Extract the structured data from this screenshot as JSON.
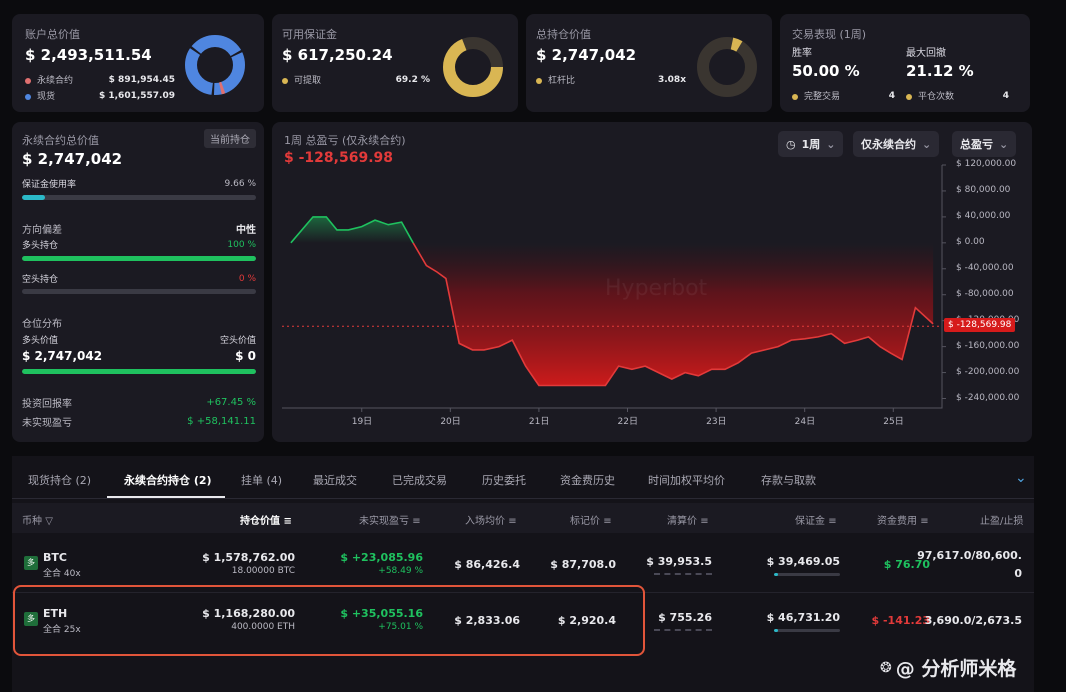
{
  "summary": {
    "total_value": {
      "label": "账户总价值",
      "value": "$ 2,493,511.54",
      "legend": [
        {
          "label": "永续合约",
          "value": "$ 891,954.45",
          "color": "#e07070"
        },
        {
          "label": "现货",
          "value": "$ 1,601,557.09",
          "color": "#4f86e0"
        }
      ]
    },
    "available_margin": {
      "label": "可用保证金",
      "value": "$ 617,250.24",
      "legend": [
        {
          "label": "可提取",
          "value": "69.2 %",
          "color": "#d9b653"
        }
      ]
    },
    "total_position": {
      "label": "总持仓价值",
      "value": "$ 2,747,042",
      "legend": [
        {
          "label": "杠杆比",
          "value": "3.08x",
          "color": "#d9b653"
        }
      ]
    },
    "performance": {
      "label": "交易表现 (1周)",
      "win_rate_label": "胜率",
      "win_rate": "50.00 %",
      "max_dd_label": "最大回撤",
      "max_dd": "21.12 %",
      "completed_label": "完整交易",
      "completed": "4",
      "close_label": "平仓次数",
      "close": "4"
    }
  },
  "perp_panel": {
    "title": "永续合约总价值",
    "badge": "当前持仓",
    "value": "$ 2,747,042",
    "margin_usage_label": "保证金使用率",
    "margin_usage": "9.66 %",
    "margin_usage_pct": 9.66,
    "bias_label": "方向偏差",
    "bias_value": "中性",
    "long_label": "多头持仓",
    "long_pct_text": "100 %",
    "long_pct": 100,
    "short_label": "空头持仓",
    "short_pct_text": "0 %",
    "short_pct": 0,
    "dist_label": "仓位分布",
    "long_value_label": "多头价值",
    "short_value_label": "空头价值",
    "long_value": "$ 2,747,042",
    "short_value": "$ 0",
    "roi_label": "投资回报率",
    "roi": "+67.45 %",
    "upnl_label": "未实现盈亏",
    "upnl": "$ +58,141.11"
  },
  "chart_panel": {
    "title": "1周 总盈亏 (仅永续合约)",
    "value": "$ -128,569.98",
    "btn_period": "1周",
    "btn_scope": "仅永续合约",
    "btn_metric": "总盈亏",
    "watermark": "Hyperbot"
  },
  "chart_data": {
    "type": "area",
    "ylim": [
      -250000,
      120000
    ],
    "yticks": [
      "$ 120,000.00",
      "$ 80,000.00",
      "$ 40,000.00",
      "$ 0.00",
      "$ -40,000.00",
      "$ -80,000.00",
      "$ -120,000.00",
      "$ -160,000.00",
      "$ -200,000.00",
      "$ -240,000.00"
    ],
    "ytick_values": [
      120000,
      80000,
      40000,
      0,
      -40000,
      -80000,
      -120000,
      -160000,
      -200000,
      -240000
    ],
    "xticks": [
      "19日",
      "20日",
      "21日",
      "22日",
      "23日",
      "24日",
      "25日"
    ],
    "xtick_values": [
      19,
      20,
      21,
      22,
      23,
      24,
      25
    ],
    "current_label": "$ -128,569.98",
    "current_value": -128569.98,
    "x": [
      18.2,
      18.45,
      18.6,
      18.72,
      18.85,
      19.0,
      19.15,
      19.3,
      19.45,
      19.58,
      19.73,
      19.85,
      19.95,
      20.1,
      20.25,
      20.38,
      20.55,
      20.7,
      20.85,
      21.0,
      21.2,
      21.4,
      21.6,
      21.75,
      21.9,
      22.05,
      22.2,
      22.35,
      22.5,
      22.65,
      22.8,
      22.95,
      23.1,
      23.25,
      23.4,
      23.55,
      23.7,
      23.85,
      24.0,
      24.15,
      24.3,
      24.45,
      24.6,
      24.72,
      24.85,
      24.97,
      25.1,
      25.25,
      25.45
    ],
    "y": [
      0,
      40000,
      40000,
      20000,
      20000,
      25000,
      35000,
      28000,
      32000,
      0,
      -35000,
      -45000,
      -55000,
      -155000,
      -165000,
      -165000,
      -160000,
      -150000,
      -190000,
      -220000,
      -220000,
      -220000,
      -220000,
      -220000,
      -190000,
      -195000,
      -190000,
      -200000,
      -210000,
      -200000,
      -205000,
      -195000,
      -195000,
      -185000,
      -170000,
      -165000,
      -160000,
      -150000,
      -148000,
      -145000,
      -140000,
      -155000,
      -150000,
      -145000,
      -160000,
      -170000,
      -180000,
      -100000,
      -125000
    ]
  },
  "tabs": [
    "现货持仓 (2)",
    "永续合约持仓 (2)",
    "挂单 (4)",
    "最近成交",
    "已完成交易",
    "历史委托",
    "资金费历史",
    "时间加权平均价",
    "存款与取款"
  ],
  "table": {
    "headers": [
      "币种",
      "持仓价值",
      "未实现盈亏",
      "入场均价",
      "标记价",
      "清算价",
      "保证金",
      "资金费用",
      "止盈/止损"
    ],
    "rows": [
      {
        "side": "多",
        "coin": "BTC",
        "mode": "全合 40x",
        "value": "$ 1,578,762.00",
        "size": "18.00000 BTC",
        "upnl": "$ +23,085.96",
        "upnl_pct": "+58.49 %",
        "entry": "$ 86,426.4",
        "mark": "$ 87,708.0",
        "liq": "$ 39,953.5",
        "margin": "$ 39,469.05",
        "funding": "$ 76.70",
        "tpsl1": "97,617.0/80,600.",
        "tpsl2": "0",
        "margin_pct": 6
      },
      {
        "side": "多",
        "coin": "ETH",
        "mode": "全合 25x",
        "value": "$ 1,168,280.00",
        "size": "400.0000 ETH",
        "upnl": "$ +35,055.16",
        "upnl_pct": "+75.01 %",
        "entry": "$ 2,833.06",
        "mark": "$ 2,920.4",
        "liq": "$ 755.26",
        "margin": "$ 46,731.20",
        "funding": "$ -141.23",
        "tpsl1": "3,690.0/2,673.5",
        "tpsl2": "",
        "margin_pct": 6
      }
    ]
  },
  "watermark_text": "@ 分析师米格"
}
